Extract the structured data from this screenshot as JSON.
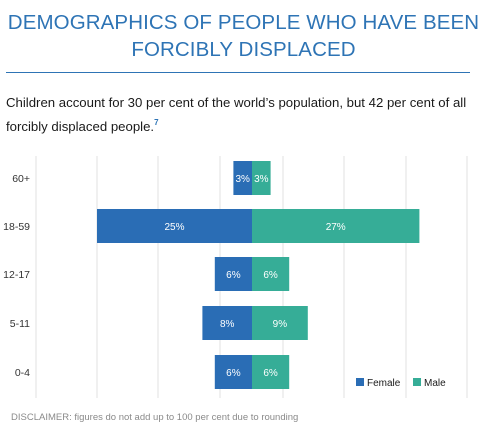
{
  "header": {
    "title_line1": "DEMOGRAPHICS OF PEOPLE WHO HAVE BEEN",
    "title_line2": "FORCIBLY DISPLACED",
    "subtitle": "Children account for 30 per cent of the world’s population, but 42 per cent of all forcibly displaced people.",
    "footnote_ref": "7"
  },
  "footer": {
    "disclaimer": "DISCLAIMER: figures do not add up to 100 per cent due to rounding"
  },
  "colors": {
    "female": "#2a6db5",
    "male": "#36ad97",
    "grid": "#e2e2e2",
    "axis_text": "#333333"
  },
  "chart_data": {
    "type": "bar",
    "orientation": "horizontal-pyramid",
    "categories": [
      "60+",
      "18-59",
      "12-17",
      "5-11",
      "0-4"
    ],
    "series": [
      {
        "name": "Female",
        "values": [
          3,
          25,
          6,
          8,
          6
        ],
        "labels": [
          "3%",
          "25%",
          "6%",
          "8%",
          "6%"
        ]
      },
      {
        "name": "Male",
        "values": [
          3,
          27,
          6,
          9,
          6
        ],
        "labels": [
          "3%",
          "27%",
          "6%",
          "9%",
          "6%"
        ]
      }
    ],
    "grid": true,
    "legend_position": "bottom-right"
  }
}
